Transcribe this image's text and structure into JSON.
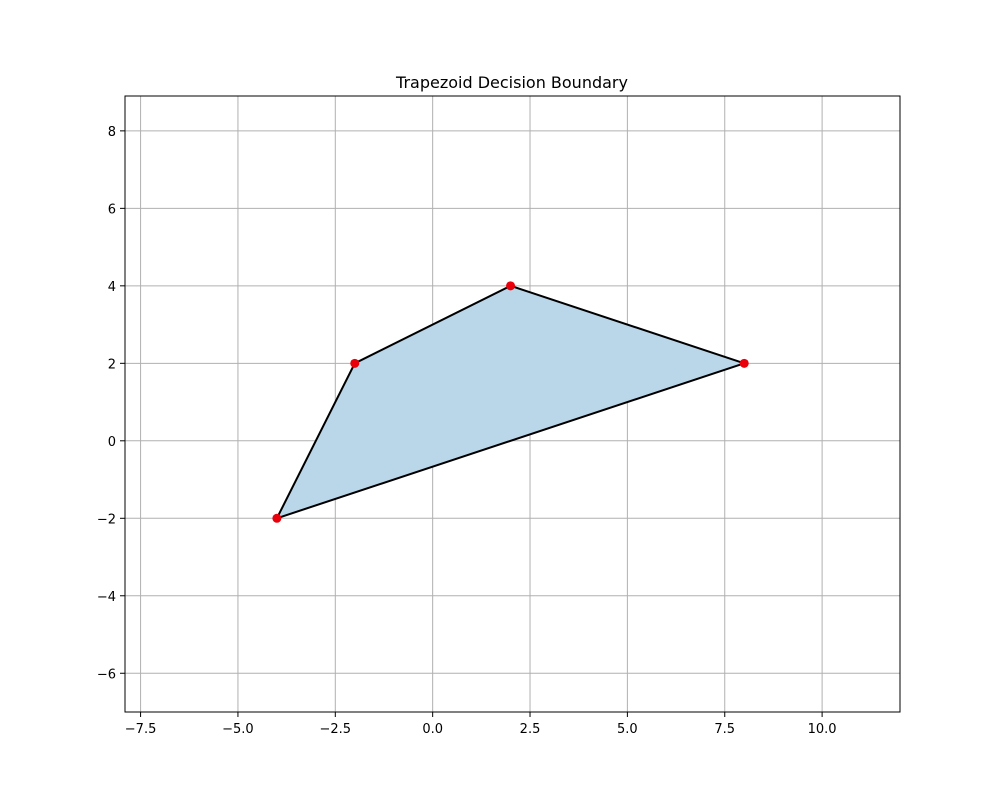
{
  "chart_data": {
    "type": "area",
    "title": "Trapezoid Decision Boundary",
    "xlabel": "",
    "ylabel": "",
    "xlim": [
      -7.9,
      12.0
    ],
    "ylim": [
      -7.0,
      8.9
    ],
    "xticks": [
      -7.5,
      -5.0,
      -2.5,
      0.0,
      2.5,
      5.0,
      7.5,
      10.0
    ],
    "xtick_labels": [
      "−7.5",
      "−5.0",
      "−2.5",
      "0.0",
      "2.5",
      "5.0",
      "7.5",
      "10.0"
    ],
    "yticks": [
      -6,
      -4,
      -2,
      0,
      2,
      4,
      6,
      8
    ],
    "ytick_labels": [
      "−6",
      "−4",
      "−2",
      "0",
      "2",
      "4",
      "6",
      "8"
    ],
    "grid": true,
    "polygon": {
      "x": [
        -4,
        -2,
        2,
        8
      ],
      "y": [
        -2,
        2,
        4,
        2
      ]
    },
    "points": {
      "x": [
        -4,
        -2,
        2,
        8
      ],
      "y": [
        -2,
        2,
        4,
        2
      ]
    },
    "colors": {
      "fill": "#bad6e9",
      "edge": "#000000",
      "points": "#e8000b",
      "grid": "#b0b0b0",
      "axes": "#000000"
    }
  }
}
